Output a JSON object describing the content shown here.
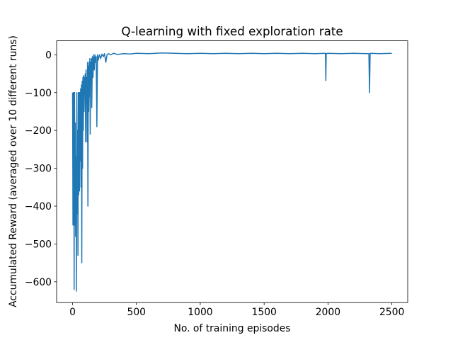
{
  "chart_data": {
    "type": "line",
    "title": "Q-learning with fixed exploration rate",
    "xlabel": "No. of training episodes",
    "ylabel": "Accumulated Reward (averaged over 10 different runs)",
    "color": "#1f77b4",
    "x": [
      0,
      3,
      6,
      9,
      12,
      15,
      18,
      21,
      24,
      27,
      30,
      33,
      36,
      39,
      42,
      45,
      48,
      51,
      54,
      57,
      60,
      63,
      66,
      69,
      72,
      75,
      78,
      81,
      84,
      87,
      90,
      93,
      96,
      99,
      102,
      105,
      108,
      111,
      114,
      117,
      120,
      123,
      126,
      129,
      132,
      135,
      138,
      141,
      144,
      147,
      150,
      155,
      160,
      165,
      170,
      175,
      180,
      185,
      190,
      195,
      200,
      210,
      220,
      230,
      240,
      250,
      260,
      270,
      280,
      300,
      320,
      350,
      400,
      450,
      500,
      600,
      700,
      800,
      900,
      1000,
      1100,
      1200,
      1300,
      1400,
      1500,
      1600,
      1700,
      1800,
      1900,
      1980,
      1983,
      1986,
      2000,
      2100,
      2200,
      2320,
      2325,
      2330,
      2400,
      2499
    ],
    "values": [
      -100,
      -450,
      -100,
      -100,
      -620,
      -100,
      -450,
      -180,
      -480,
      -270,
      -625,
      -100,
      -420,
      -200,
      -530,
      -100,
      -370,
      -100,
      -360,
      -100,
      -280,
      -90,
      -350,
      -80,
      -550,
      -70,
      -300,
      -60,
      -200,
      -55,
      -150,
      -60,
      -100,
      -50,
      -230,
      -40,
      -130,
      -60,
      -230,
      -20,
      -400,
      -30,
      -150,
      -20,
      -110,
      -10,
      -210,
      -20,
      -60,
      -10,
      -140,
      -5,
      -60,
      0,
      -40,
      0,
      -20,
      -5,
      -190,
      0,
      -15,
      0,
      -10,
      2,
      -5,
      3,
      -20,
      0,
      3,
      0,
      4,
      1,
      3,
      2,
      4,
      3,
      5,
      4,
      3,
      4,
      3,
      4,
      3,
      4,
      3,
      4,
      3,
      4,
      3,
      4,
      -68,
      3,
      4,
      3,
      4,
      3,
      -100,
      4,
      3,
      4
    ],
    "xlim": [
      -125,
      2624
    ],
    "ylim": [
      -655,
      37
    ],
    "xticks": [
      0,
      500,
      1000,
      1500,
      2000,
      2500
    ],
    "yticks": [
      {
        "value": -600,
        "label": "−600"
      },
      {
        "value": -500,
        "label": "−500"
      },
      {
        "value": -400,
        "label": "−400"
      },
      {
        "value": -300,
        "label": "−300"
      },
      {
        "value": -200,
        "label": "−200"
      },
      {
        "value": -100,
        "label": "−100"
      },
      0
    ]
  }
}
